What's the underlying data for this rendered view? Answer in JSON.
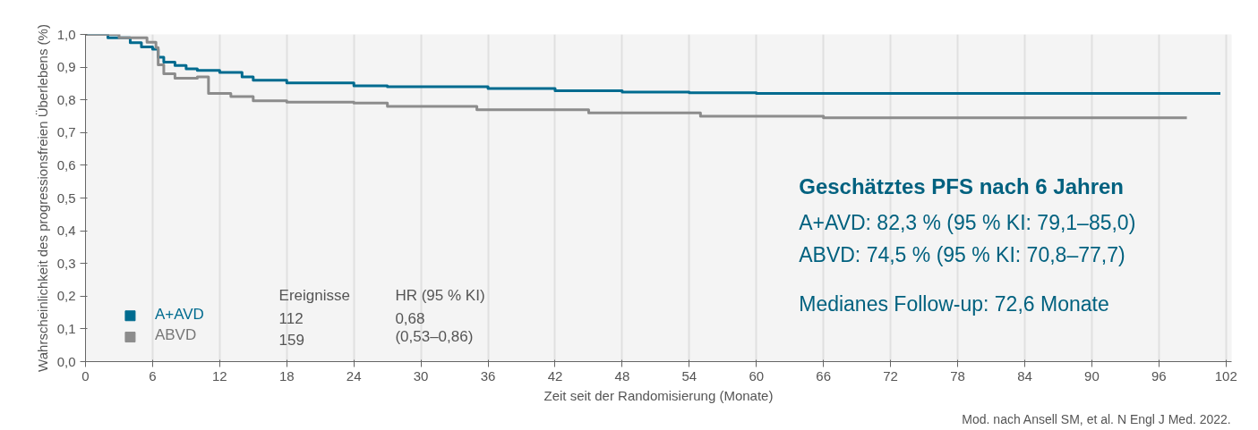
{
  "chart_data": {
    "type": "step",
    "xlabel": "Zeit seit der Randomisierung (Monate)",
    "ylabel": "Wahrscheinlichkeit des progressionsfreien Überlebens (%)",
    "xlim": [
      0,
      102.5
    ],
    "ylim": [
      0,
      1.0
    ],
    "xticks": [
      0,
      6,
      12,
      18,
      24,
      30,
      36,
      42,
      48,
      54,
      60,
      66,
      72,
      78,
      84,
      90,
      96,
      102
    ],
    "yticks": [
      {
        "value": 0,
        "label": "0,0"
      },
      {
        "value": 0.1,
        "label": "0,1"
      },
      {
        "value": 0.2,
        "label": "0,2"
      },
      {
        "value": 0.3,
        "label": "0,3"
      },
      {
        "value": 0.4,
        "label": "0,4"
      },
      {
        "value": 0.5,
        "label": "0,5"
      },
      {
        "value": 0.6,
        "label": "0,6"
      },
      {
        "value": 0.7,
        "label": "0,7"
      },
      {
        "value": 0.8,
        "label": "0,8"
      },
      {
        "value": 0.9,
        "label": "0,9"
      },
      {
        "value": 1.0,
        "label": "1,0"
      }
    ],
    "grid": "x",
    "legend": "bottom left",
    "series": [
      {
        "name": "A+AVD",
        "color": "#006b8f",
        "x": [
          0,
          2,
          4,
          5,
          6,
          6.5,
          7,
          8,
          9,
          10,
          12,
          14,
          15,
          18,
          24,
          27,
          30,
          36,
          42,
          48,
          54,
          60,
          101.5
        ],
        "values": [
          1.0,
          0.99,
          0.975,
          0.962,
          0.955,
          0.93,
          0.915,
          0.905,
          0.895,
          0.89,
          0.884,
          0.87,
          0.86,
          0.852,
          0.843,
          0.84,
          0.84,
          0.835,
          0.828,
          0.824,
          0.822,
          0.82,
          0.82
        ]
      },
      {
        "name": "ABVD",
        "color": "#8c8c8c",
        "x": [
          0,
          3,
          5.5,
          6.3,
          6.5,
          7,
          8,
          10,
          11,
          13,
          15,
          18,
          24,
          27,
          35,
          45,
          55,
          66,
          98.5
        ],
        "values": [
          1.0,
          0.99,
          0.976,
          0.96,
          0.907,
          0.88,
          0.866,
          0.87,
          0.82,
          0.81,
          0.797,
          0.793,
          0.79,
          0.78,
          0.77,
          0.76,
          0.75,
          0.745,
          0.745
        ]
      }
    ],
    "annotations": [
      "Ereignisse",
      "HR (95 % KI)",
      "112",
      "0,68",
      "159",
      "(0,53–0,86)",
      "Geschätztes PFS nach 6 Jahren",
      "A+AVD: 82,3 % (95 % KI: 79,1–85,0)",
      "ABVD: 74,5 % (95 % KI: 70,8–77,7)",
      "Medianes Follow-up: 72,6 Monate",
      "Mod. nach Ansell SM, et al. N Engl J Med. 2022."
    ]
  }
}
